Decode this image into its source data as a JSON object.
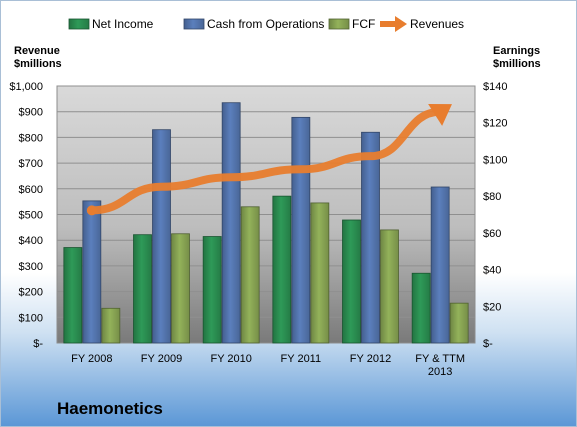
{
  "company_name": "Haemonetics",
  "left_axis_title": "Revenue\n$millions",
  "right_axis_title": "Earnings\n$millions",
  "colors": {
    "net_income": "#2e9a58",
    "cash_from_operations": "#5b7fbd",
    "fcf": "#93b25a",
    "revenues": "#e87d2e"
  },
  "chart_data": {
    "type": "bar",
    "categories": [
      "FY 2008",
      "FY 2009",
      "FY 2010",
      "FY 2011",
      "FY 2012",
      "FY & TTM\n2013"
    ],
    "series": [
      {
        "name": "Net Income",
        "axis": "right",
        "values": [
          52,
          59,
          58,
          80,
          67,
          38
        ]
      },
      {
        "name": "Cash from Operations",
        "axis": "left",
        "values": [
          553,
          830,
          935,
          878,
          820,
          607
        ]
      },
      {
        "name": "FCF",
        "axis": "left",
        "values": [
          135,
          425,
          530,
          545,
          440,
          155
        ]
      },
      {
        "name": "Revenues",
        "type": "line",
        "axis": "left",
        "values": [
          516,
          608,
          645,
          676,
          727,
          900
        ]
      }
    ],
    "left_axis": {
      "ylim": [
        0,
        1000
      ],
      "ticks": [
        "$-",
        "$100",
        "$200",
        "$300",
        "$400",
        "$500",
        "$600",
        "$700",
        "$800",
        "$900",
        "$1,000"
      ]
    },
    "right_axis": {
      "ylim": [
        0,
        140
      ],
      "ticks": [
        "$-",
        "$20",
        "$40",
        "$60",
        "$80",
        "$100",
        "$120",
        "$140"
      ]
    },
    "legend": "top",
    "grid": true
  }
}
